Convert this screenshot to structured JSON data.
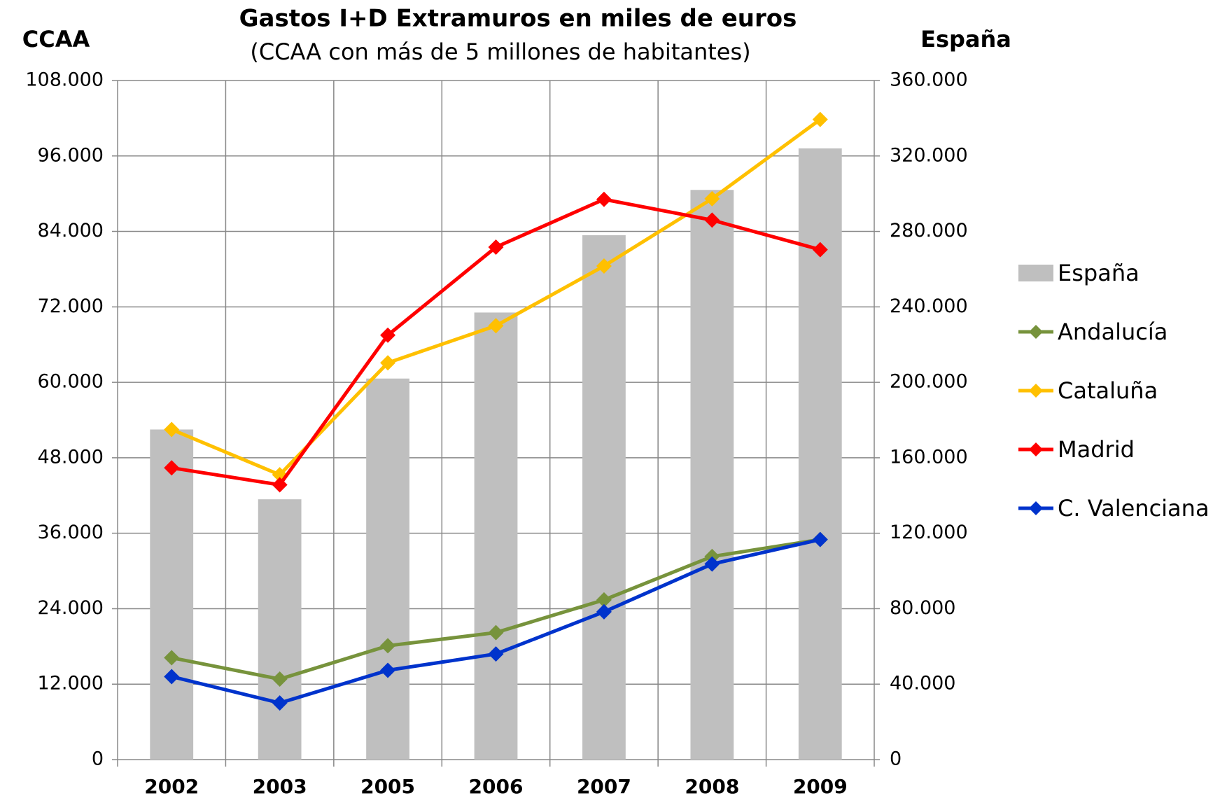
{
  "chart_data": {
    "type": "bar",
    "title": "Gastos I+D Extramuros en miles de euros",
    "subtitle": "(CCAA con más de 5 millones de habitantes)",
    "y_label": "CCAA",
    "y2_label": "España",
    "categories": [
      "2002",
      "2003",
      "2005",
      "2006",
      "2007",
      "2008",
      "2009"
    ],
    "ylim": [
      0,
      108000
    ],
    "yticks": [
      0,
      {
        "value": 12000,
        "label": "12.000"
      },
      {
        "value": 24000,
        "label": "24.000"
      },
      {
        "value": 36000,
        "label": "36.000"
      },
      {
        "value": 48000,
        "label": "48.000"
      },
      {
        "value": 60000,
        "label": "60.000"
      },
      {
        "value": 72000,
        "label": "72.000"
      },
      {
        "value": 84000,
        "label": "84.000"
      },
      {
        "value": 96000,
        "label": "96.000"
      },
      {
        "value": 108000,
        "label": "108.000"
      }
    ],
    "y2lim": [
      0,
      360000
    ],
    "y2ticks": [
      0,
      {
        "value": 40000,
        "label": "40.000"
      },
      {
        "value": 80000,
        "label": "80.000"
      },
      {
        "value": 120000,
        "label": "120.000"
      },
      {
        "value": 160000,
        "label": "160.000"
      },
      {
        "value": 200000,
        "label": "200.000"
      },
      {
        "value": 240000,
        "label": "240.000"
      },
      {
        "value": 280000,
        "label": "280.000"
      },
      {
        "value": 320000,
        "label": "320.000"
      },
      {
        "value": 360000,
        "label": "360.000"
      }
    ],
    "grid": true,
    "legend": "right",
    "series": [
      {
        "name": "España",
        "type": "bar",
        "axis": "y2",
        "color": "#bfbfbf",
        "values": [
          175000,
          138000,
          202000,
          237000,
          278000,
          302000,
          324000
        ]
      },
      {
        "name": "Andalucía",
        "type": "line",
        "color": "#77933c",
        "values": [
          16200,
          12800,
          18100,
          20200,
          25400,
          32300,
          35000
        ]
      },
      {
        "name": "Cataluña",
        "type": "line",
        "color": "#ffc000",
        "values": [
          52500,
          45300,
          63100,
          69000,
          78500,
          89200,
          101800
        ]
      },
      {
        "name": "Madrid",
        "type": "line",
        "color": "#ff0000",
        "values": [
          46400,
          43700,
          67500,
          81500,
          89100,
          85800,
          81100
        ]
      },
      {
        "name": "C. Valenciana",
        "type": "line",
        "color": "#0033cc",
        "values": [
          13200,
          9000,
          14200,
          16800,
          23500,
          31100,
          35000
        ]
      }
    ]
  }
}
